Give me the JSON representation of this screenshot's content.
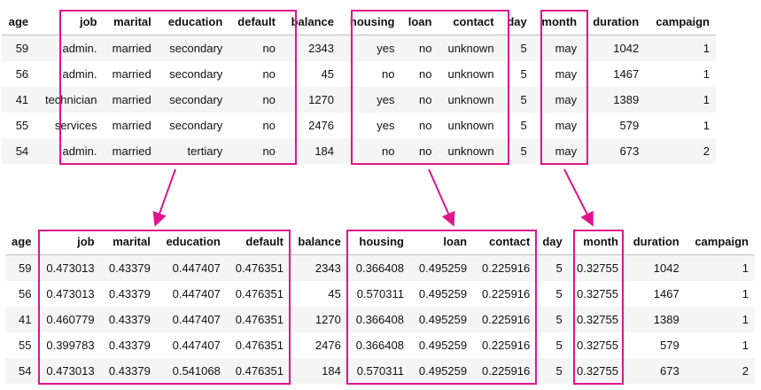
{
  "top_table": {
    "headers": [
      "age",
      "job",
      "marital",
      "education",
      "default",
      "balance",
      "housing",
      "loan",
      "contact",
      "day",
      "month",
      "duration",
      "campaign"
    ],
    "rows": [
      [
        "59",
        "admin.",
        "married",
        "secondary",
        "no",
        "2343",
        "yes",
        "no",
        "unknown",
        "5",
        "may",
        "1042",
        "1"
      ],
      [
        "56",
        "admin.",
        "married",
        "secondary",
        "no",
        "45",
        "no",
        "no",
        "unknown",
        "5",
        "may",
        "1467",
        "1"
      ],
      [
        "41",
        "technician",
        "married",
        "secondary",
        "no",
        "1270",
        "yes",
        "no",
        "unknown",
        "5",
        "may",
        "1389",
        "1"
      ],
      [
        "55",
        "services",
        "married",
        "secondary",
        "no",
        "2476",
        "yes",
        "no",
        "unknown",
        "5",
        "may",
        "579",
        "1"
      ],
      [
        "54",
        "admin.",
        "married",
        "tertiary",
        "no",
        "184",
        "no",
        "no",
        "unknown",
        "5",
        "may",
        "673",
        "2"
      ]
    ]
  },
  "bottom_table": {
    "headers": [
      "age",
      "job",
      "marital",
      "education",
      "default",
      "balance",
      "housing",
      "loan",
      "contact",
      "day",
      "month",
      "duration",
      "campaign"
    ],
    "rows": [
      [
        "59",
        "0.473013",
        "0.43379",
        "0.447407",
        "0.476351",
        "2343",
        "0.366408",
        "0.495259",
        "0.225916",
        "5",
        "0.32755",
        "1042",
        "1"
      ],
      [
        "56",
        "0.473013",
        "0.43379",
        "0.447407",
        "0.476351",
        "45",
        "0.570311",
        "0.495259",
        "0.225916",
        "5",
        "0.32755",
        "1467",
        "1"
      ],
      [
        "41",
        "0.460779",
        "0.43379",
        "0.447407",
        "0.476351",
        "1270",
        "0.366408",
        "0.495259",
        "0.225916",
        "5",
        "0.32755",
        "1389",
        "1"
      ],
      [
        "55",
        "0.399783",
        "0.43379",
        "0.447407",
        "0.476351",
        "2476",
        "0.366408",
        "0.495259",
        "0.225916",
        "5",
        "0.32755",
        "579",
        "1"
      ],
      [
        "54",
        "0.473013",
        "0.43379",
        "0.541068",
        "0.476351",
        "184",
        "0.570311",
        "0.495259",
        "0.225916",
        "5",
        "0.32755",
        "673",
        "2"
      ]
    ]
  },
  "highlight_groups": [
    [
      "job",
      "marital",
      "education",
      "default"
    ],
    [
      "housing",
      "loan",
      "contact"
    ],
    [
      "month"
    ]
  ],
  "colors": {
    "highlight": "#e0148c",
    "stripe": "#f5f5f5"
  }
}
